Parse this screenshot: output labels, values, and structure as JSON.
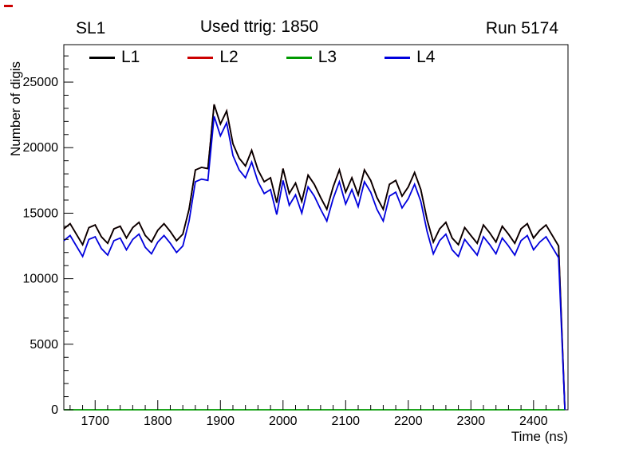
{
  "header": {
    "left": "SL1",
    "center": "Used ttrig: 1850",
    "right": "Run 5174"
  },
  "chart_data": {
    "type": "line",
    "title": "Used ttrig: 1850",
    "xlabel": "Time (ns)",
    "ylabel": "Number of digis",
    "xlim": [
      1650,
      2455
    ],
    "ylim": [
      0,
      27860
    ],
    "xticks": [
      1700,
      1800,
      1900,
      2000,
      2100,
      2200,
      2300,
      2400
    ],
    "yticks": [
      0,
      5000,
      10000,
      15000,
      20000,
      25000
    ],
    "x_minor_step": 20,
    "y_minor_step": 1000,
    "grid": false,
    "legend_position": "top",
    "draw_order": [
      "L2",
      "L1",
      "L3",
      "L4"
    ],
    "x": [
      1650,
      1660,
      1670,
      1680,
      1690,
      1700,
      1710,
      1720,
      1730,
      1740,
      1750,
      1760,
      1770,
      1780,
      1790,
      1800,
      1810,
      1820,
      1830,
      1840,
      1850,
      1860,
      1870,
      1880,
      1890,
      1900,
      1910,
      1920,
      1930,
      1940,
      1950,
      1960,
      1970,
      1980,
      1990,
      2000,
      2010,
      2020,
      2030,
      2040,
      2050,
      2060,
      2070,
      2080,
      2090,
      2100,
      2110,
      2120,
      2130,
      2140,
      2150,
      2160,
      2170,
      2180,
      2190,
      2200,
      2210,
      2220,
      2230,
      2240,
      2250,
      2260,
      2270,
      2280,
      2290,
      2300,
      2310,
      2320,
      2330,
      2340,
      2350,
      2360,
      2370,
      2380,
      2390,
      2400,
      2410,
      2420,
      2430,
      2440,
      2450
    ],
    "series": [
      {
        "name": "L1",
        "color": "#000000",
        "values": [
          13800,
          14200,
          13400,
          12600,
          13900,
          14100,
          13200,
          12700,
          13800,
          14000,
          13100,
          13900,
          14300,
          13300,
          12800,
          13700,
          14200,
          13600,
          12900,
          13400,
          15300,
          18300,
          18500,
          18400,
          23300,
          21800,
          22800,
          20300,
          19200,
          18600,
          19800,
          18300,
          17400,
          17700,
          15800,
          18400,
          16500,
          17300,
          15900,
          17900,
          17200,
          16200,
          15300,
          17000,
          18300,
          16600,
          17700,
          16400,
          18300,
          17500,
          16200,
          15300,
          17200,
          17500,
          16300,
          17000,
          18100,
          16800,
          14500,
          12800,
          13800,
          14300,
          13100,
          12600,
          13900,
          13300,
          12700,
          14100,
          13500,
          12800,
          14000,
          13400,
          12700,
          13800,
          14200,
          13100,
          13700,
          14100,
          13300,
          12500,
          0
        ]
      },
      {
        "name": "L2",
        "color": "#cc0000",
        "values": [
          13800,
          14200,
          13400,
          12600,
          13900,
          14100,
          13200,
          12700,
          13800,
          14000,
          13100,
          13900,
          14300,
          13300,
          12800,
          13700,
          14200,
          13600,
          12900,
          13400,
          15300,
          18300,
          18500,
          18400,
          23300,
          21800,
          22800,
          20300,
          19200,
          18600,
          19800,
          18300,
          17400,
          17700,
          15800,
          18400,
          16500,
          17300,
          15900,
          17900,
          17200,
          16200,
          15300,
          17000,
          18300,
          16600,
          17700,
          16400,
          18300,
          17500,
          16200,
          15300,
          17200,
          17500,
          16300,
          17000,
          18100,
          16800,
          14500,
          12800,
          13800,
          14300,
          13100,
          12600,
          13900,
          13300,
          12700,
          14100,
          13500,
          12800,
          14000,
          13400,
          12700,
          13800,
          14200,
          13100,
          13700,
          14100,
          13300,
          12500,
          0
        ]
      },
      {
        "name": "L3",
        "color": "#009900",
        "values": [
          0,
          0,
          0,
          0,
          0,
          0,
          0,
          0,
          0,
          0,
          0,
          0,
          0,
          0,
          0,
          0,
          0,
          0,
          0,
          0,
          0,
          0,
          0,
          0,
          0,
          0,
          0,
          0,
          0,
          0,
          0,
          0,
          0,
          0,
          0,
          0,
          0,
          0,
          0,
          0,
          0,
          0,
          0,
          0,
          0,
          0,
          0,
          0,
          0,
          0,
          0,
          0,
          0,
          0,
          0,
          0,
          0,
          0,
          0,
          0,
          0,
          0,
          0,
          0,
          0,
          0,
          0,
          0,
          0,
          0,
          0,
          0,
          0,
          0,
          0,
          0,
          0,
          0,
          0,
          0,
          0
        ]
      },
      {
        "name": "L4",
        "color": "#0000dd",
        "values": [
          12900,
          13300,
          12500,
          11700,
          13000,
          13200,
          12300,
          11800,
          12900,
          13100,
          12200,
          13000,
          13400,
          12400,
          11900,
          12800,
          13300,
          12700,
          12000,
          12500,
          14400,
          17400,
          17600,
          17500,
          22400,
          20900,
          21900,
          19400,
          18300,
          17700,
          18900,
          17400,
          16500,
          16800,
          14900,
          17500,
          15600,
          16400,
          15000,
          17000,
          16300,
          15300,
          14400,
          16100,
          17400,
          15700,
          16800,
          15500,
          17400,
          16600,
          15300,
          14400,
          16300,
          16600,
          15400,
          16100,
          17200,
          15900,
          13600,
          11900,
          12900,
          13400,
          12200,
          11700,
          13000,
          12400,
          11800,
          13200,
          12600,
          11900,
          13100,
          12500,
          11800,
          12900,
          13300,
          12200,
          12800,
          13200,
          12400,
          11600,
          0
        ]
      }
    ]
  }
}
